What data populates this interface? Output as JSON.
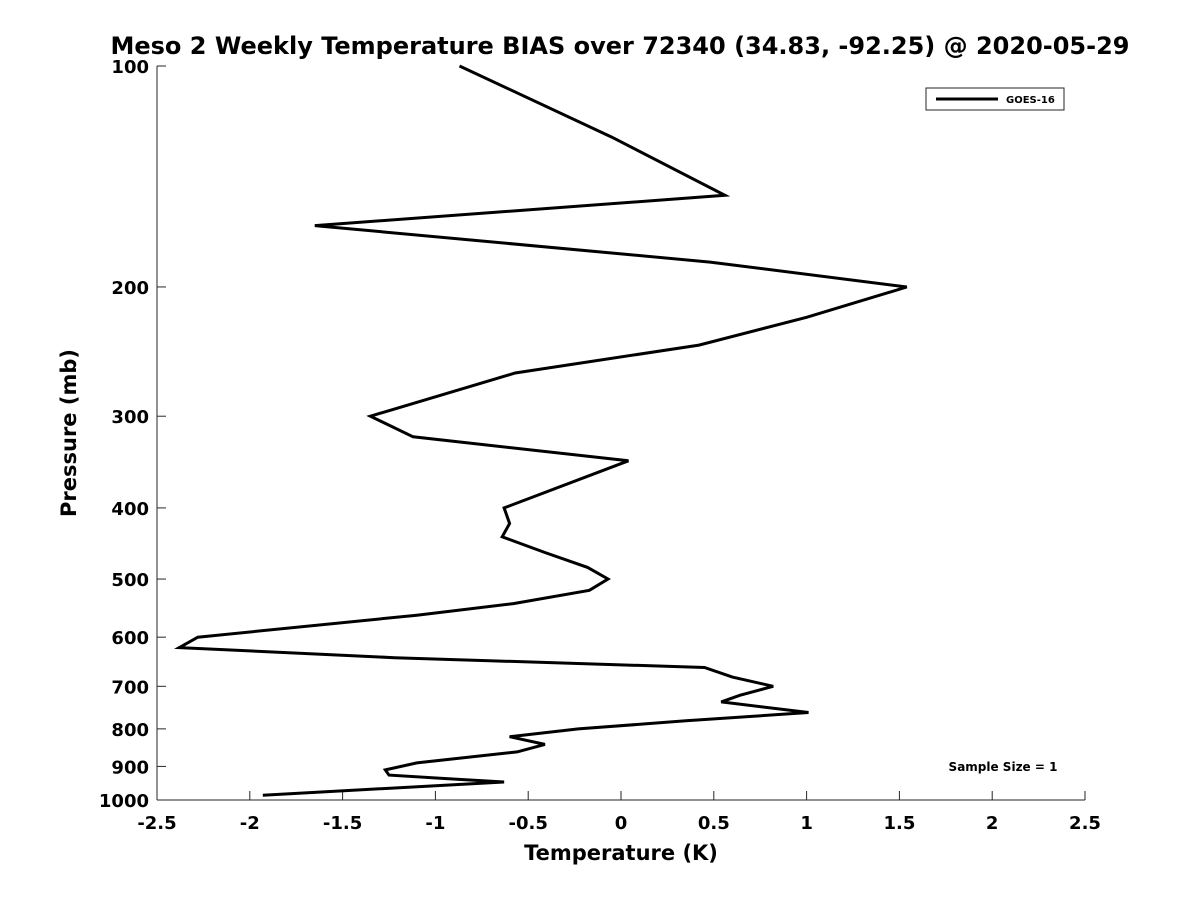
{
  "chart_data": {
    "type": "line",
    "title": "Meso 2 Weekly Temperature BIAS over 72340 (34.83, -92.25) @ 2020-05-29",
    "xlabel": "Temperature (K)",
    "ylabel": "Pressure (mb)",
    "xlim": [
      -2.5,
      2.5
    ],
    "ylim": [
      100,
      1000
    ],
    "y_scale": "log",
    "y_reversed": true,
    "xticks": [
      "-2.5",
      "-2",
      "-1.5",
      "-1",
      "-0.5",
      "0",
      "0.5",
      "1",
      "1.5",
      "2",
      "2.5"
    ],
    "yticks": [
      "100",
      "200",
      "300",
      "400",
      "500",
      "600",
      "700",
      "800",
      "900",
      "1000"
    ],
    "grid": false,
    "legend_position": "top-right",
    "series": [
      {
        "name": "GOES-16",
        "color": "#000000",
        "points": [
          {
            "x": -0.87,
            "y": 100
          },
          {
            "x": -0.05,
            "y": 125
          },
          {
            "x": 0.56,
            "y": 150
          },
          {
            "x": -1.65,
            "y": 165
          },
          {
            "x": 0.48,
            "y": 185
          },
          {
            "x": 1.54,
            "y": 200
          },
          {
            "x": 1.0,
            "y": 220
          },
          {
            "x": 0.42,
            "y": 240
          },
          {
            "x": -0.57,
            "y": 262
          },
          {
            "x": -1.35,
            "y": 300
          },
          {
            "x": -1.12,
            "y": 320
          },
          {
            "x": 0.04,
            "y": 345
          },
          {
            "x": -0.63,
            "y": 400
          },
          {
            "x": -0.6,
            "y": 420
          },
          {
            "x": -0.64,
            "y": 438
          },
          {
            "x": -0.41,
            "y": 460
          },
          {
            "x": -0.18,
            "y": 482
          },
          {
            "x": -0.07,
            "y": 500
          },
          {
            "x": -0.17,
            "y": 518
          },
          {
            "x": -0.58,
            "y": 540
          },
          {
            "x": -1.1,
            "y": 560
          },
          {
            "x": -2.28,
            "y": 600
          },
          {
            "x": -2.38,
            "y": 620
          },
          {
            "x": -1.22,
            "y": 640
          },
          {
            "x": 0.45,
            "y": 660
          },
          {
            "x": 0.6,
            "y": 680
          },
          {
            "x": 0.82,
            "y": 700
          },
          {
            "x": 0.64,
            "y": 720
          },
          {
            "x": 0.54,
            "y": 735
          },
          {
            "x": 1.01,
            "y": 760
          },
          {
            "x": 0.35,
            "y": 780
          },
          {
            "x": -0.23,
            "y": 800
          },
          {
            "x": -0.6,
            "y": 820
          },
          {
            "x": -0.41,
            "y": 840
          },
          {
            "x": -0.56,
            "y": 860
          },
          {
            "x": -1.1,
            "y": 890
          },
          {
            "x": -1.27,
            "y": 910
          },
          {
            "x": -1.25,
            "y": 925
          },
          {
            "x": -0.94,
            "y": 935
          },
          {
            "x": -0.63,
            "y": 945
          },
          {
            "x": -1.93,
            "y": 985
          }
        ]
      }
    ],
    "annotations": [
      {
        "text": "Sample Size = 1",
        "position": "bottom-right"
      }
    ]
  }
}
